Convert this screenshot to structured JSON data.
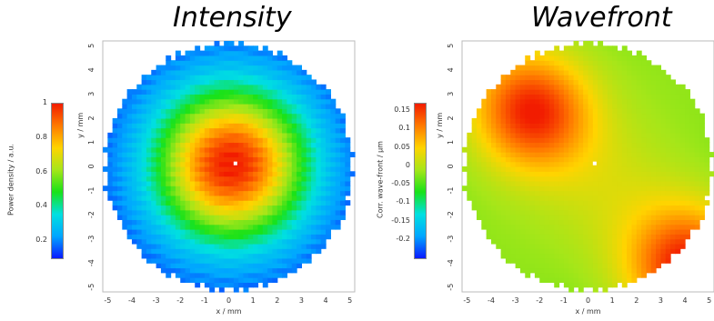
{
  "chart_data": [
    {
      "type": "heatmap",
      "title": "Intensity",
      "xlabel": "x / mm",
      "ylabel": "y / mm",
      "colorbar_label": "Power density / a.u.",
      "xlim": [
        -5.2,
        5.2
      ],
      "ylim": [
        -5.2,
        5.2
      ],
      "xticks": [
        -5,
        -4,
        -3,
        -2,
        -1,
        0,
        1,
        2,
        3,
        4,
        5
      ],
      "yticks": [
        5,
        4,
        3,
        2,
        1,
        0,
        -1,
        -2,
        -3,
        -4,
        -5
      ],
      "colorbar_range": [
        0.1,
        1
      ],
      "colorbar_ticks": [
        "1",
        "0.8",
        "0.6",
        "0.4",
        "0.2"
      ],
      "colorbar_tick_values": [
        1,
        0.8,
        0.6,
        0.4,
        0.2
      ],
      "colormap": [
        "#0a1aff",
        "#00a6ff",
        "#00e0e0",
        "#19e219",
        "#a6e619",
        "#ffd400",
        "#ff7a00",
        "#f21c00"
      ],
      "aperture_radius_mm": 5.0,
      "field": {
        "model": "gaussian",
        "peak": 1.0,
        "edge": 0.13,
        "center": [
          0.1,
          0.1
        ]
      }
    },
    {
      "type": "heatmap",
      "title": "Wavefront",
      "xlabel": "x / mm",
      "ylabel": "y / mm",
      "colorbar_label": "Corr. wave-front / µm",
      "xlim": [
        -5.2,
        5.2
      ],
      "ylim": [
        -5.2,
        5.2
      ],
      "xticks": [
        -5,
        -4,
        -3,
        -2,
        -1,
        0,
        1,
        2,
        3,
        4,
        5
      ],
      "yticks": [
        5,
        4,
        3,
        2,
        1,
        0,
        -1,
        -2,
        -3,
        -4,
        -5
      ],
      "colorbar_range": [
        -0.25,
        0.17
      ],
      "colorbar_ticks": [
        "0.15",
        "0.1",
        "0.05",
        "0",
        "-0.05",
        "-0.1",
        "-0.15",
        "-0.2"
      ],
      "colorbar_tick_values": [
        0.15,
        0.1,
        0.05,
        0,
        -0.05,
        -0.1,
        -0.15,
        -0.2
      ],
      "colormap": [
        "#0a1aff",
        "#00a6ff",
        "#00e0e0",
        "#19e219",
        "#a6e619",
        "#ffd400",
        "#ff7a00",
        "#f21c00"
      ],
      "aperture_radius_mm": 5.0,
      "field": {
        "model": "astigmatism",
        "peaks_mm": [
          [
            -2.3,
            2.3
          ],
          [
            3.6,
            -3.6
          ]
        ],
        "peak_value": 0.15,
        "trough_value": -0.05
      }
    }
  ]
}
